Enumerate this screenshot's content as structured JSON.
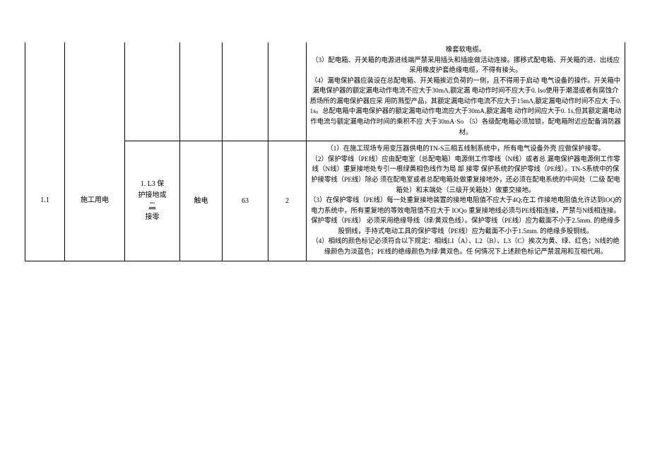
{
  "table": {
    "row1": {
      "desc_line1": "橡套软电缆。",
      "desc_line2": "（3）配电箱、开关箱的电源进线端严禁采用插头和插座做活动连接。挪移式配电箱、开关箱的进、出线应采用橡皮护套绝缘电缆，不得有接头。",
      "desc_line3": "（4）漏电保护器应装设在总配电箱、开关箱挨近负荷的一侧，且不得用于启动 电气设备的操作。开关箱中漏电保护器的额定漏电动作电流不应大于30mΛ,额定漏 电动作时间不应大于0. lso使用于潮湿或者有腐蚀介质场所的漏电保护器应采 用防溅型产品，其额定漏电动作电流不应大于15mΛ,额定漏电动作时间不应大 于0. 1s。总配电箱中漏电保护器的额定漏电动作电流应大于30mA,额定漏电 动作时间应大于0. 1s,但其额定漏电动作电流与额定漏电动作时间的乘积不应 大于30mA·So （5）各级配电箱必须加锁，配电箱附近应配备消防器材。"
    },
    "row2": {
      "c1": "1.1",
      "c2": "施工用电",
      "c3_a": "1. L3 保",
      "c3_b": "护接地或",
      "c3_c": "二",
      "c3_d": "接零",
      "c4": "触电",
      "c5": "63",
      "c6": "2",
      "desc_p1": "（1）在施工现场专用变压器供电的TN-S三相五线制系统中，所有电气设备外壳 应做保护接零。",
      "desc_p2": "（2）保护零线（PE线）应由配电室（总配电箱）电源侧工作零线（N线）或者总 漏电保护器电源侧工作零线（N线）重复接地处专引一根绿黄相色线作为局 部 接零 保护系统的保护零线（PE线）。TN-S系统中的保护接零线（PE线）除必 须在配电室或者总配电箱处做重复接地外，还必须在配电系统的中间处（二级 配电箱处）和末端处（三级开关箱处）做重交接地。",
      "desc_p3": "（3）在保护零线（PE线）每一处重复接地装置的接地电阻值不应大于4Q;在工 作接地电阻值允许达到lOQ的电力系统中，所有重复地的等效电阻值不应大于 IOQo 重复接地线必须与PE线相连接，严禁与N线相连接。保护零线（PE线） 必须采用绝缘导线（绿/黄双色线）。保护零线（PE线）应为截面不小于2.5mm. 的绝缘多股铜线，手持式电动工具的保护零线（PE线）应为截面不小于1.5mm. 的绝缘多股铜线。",
      "desc_p4": "（4）相线的颜色标记必须符合以下规定：相线LI（A）、L2（B）、L3（C）挨次为黄、绿、红色；N线的绝缘颜色为淡蓝色；PE线的绝缘颜色为绿/黄双色。任 何情况下上述颜色标记严禁混用和互相代用。"
    }
  }
}
